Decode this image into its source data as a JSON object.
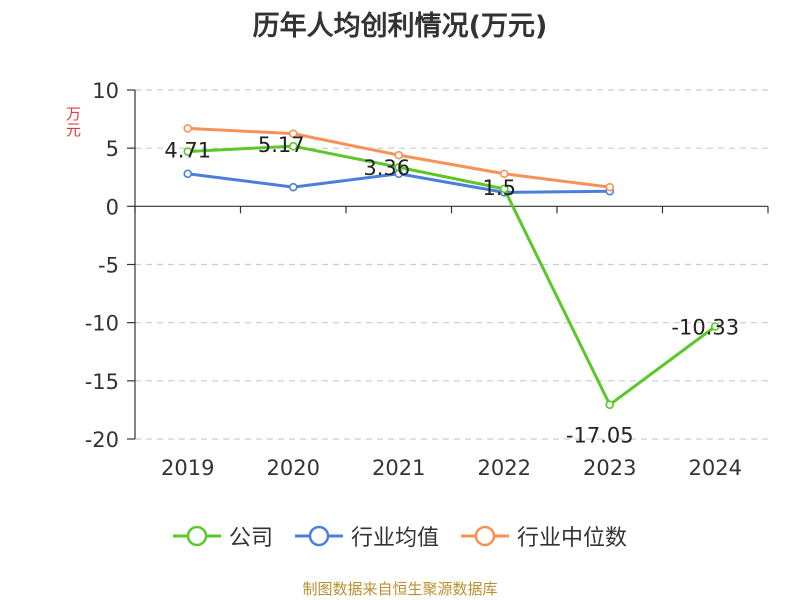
{
  "chart_data": {
    "type": "line",
    "title": "历年人均创利情况(万元)",
    "ylabel": "万元",
    "categories": [
      "2019",
      "2020",
      "2021",
      "2022",
      "2023",
      "2024"
    ],
    "yticks": [
      "10",
      "5",
      "0",
      "-5",
      "-10",
      "-15",
      "-20"
    ],
    "ylim": [
      -20,
      10
    ],
    "grid": true,
    "legend_position": "bottom",
    "series": [
      {
        "name": "公司",
        "color": "#5cc72a",
        "values": [
          4.71,
          5.17,
          3.36,
          1.5,
          -17.05,
          -10.33
        ],
        "labels": [
          "4.71",
          "5.17",
          "3.36",
          "1.5",
          "-17.05",
          "-10.33"
        ]
      },
      {
        "name": "行业均值",
        "color": "#4a7fdc",
        "values": [
          2.8,
          1.65,
          2.8,
          1.2,
          1.3,
          null
        ]
      },
      {
        "name": "行业中位数",
        "color": "#f89158",
        "values": [
          6.7,
          6.25,
          4.4,
          2.8,
          1.65,
          null
        ]
      }
    ],
    "source": "制图数据来自恒生聚源数据库"
  }
}
